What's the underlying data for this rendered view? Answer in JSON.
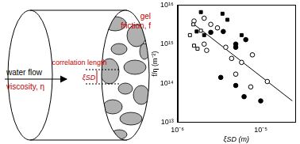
{
  "diagram": {
    "flow_label": "water flow",
    "viscosity_label": "viscosity, η",
    "gel_label": "gel",
    "friction_label": "friction, f",
    "correlation_label": "correlation length",
    "xi_label": "ξSD"
  },
  "chart_data": {
    "type": "scatter",
    "x_label": "ξSD (m)",
    "y_label": "f/η (m⁻²)",
    "log": true,
    "grid": false,
    "xlim": [
      1e-06,
      2.6e-05
    ],
    "xticks": [
      {
        "value": 1e-06,
        "label": "10⁻⁶"
      },
      {
        "value": 1e-05,
        "label": "10⁻⁵"
      }
    ],
    "ylim": [
      10000000000000.0,
      1e+16
    ],
    "yticks": [
      {
        "value": 10000000000000.0,
        "label": "10¹³"
      },
      {
        "value": 100000000000000.0,
        "label": "10¹⁴"
      },
      {
        "value": 1000000000000000.0,
        "label": "10¹⁵"
      },
      {
        "value": 1e+16,
        "label": "10¹⁶"
      }
    ],
    "series": [
      {
        "type": "scatter",
        "marker": "filled_square",
        "color": "#000000",
        "x": [
          1.91e-06,
          3.47e-06,
          3.98e-06,
          1.7e-06,
          2.09e-06,
          5.89e-06
        ],
        "values": [
          6600000000000000.0,
          6000000000000000.0,
          4200000000000000.0,
          2100000000000000.0,
          1700000000000000.0,
          1700000000000000.0
        ]
      },
      {
        "type": "scatter",
        "marker": "open_square",
        "color": "#000000",
        "x": [
          1.55e-06,
          1.91e-06,
          1.41e-06,
          1.58e-06,
          1.74e-06
        ],
        "values": [
          3200000000000000.0,
          2200000000000000.0,
          1700000000000000.0,
          910000000000000.0,
          760000000000000.0
        ]
      },
      {
        "type": "scatter",
        "marker": "filled_circle",
        "color": "#000000",
        "x": [
          2.51e-06,
          3.55e-06,
          5.01e-06,
          6.61e-06,
          5.01e-06,
          3.31e-06,
          5.01e-06,
          6.31e-06,
          1e-05
        ],
        "values": [
          2000000000000000.0,
          2100000000000000.0,
          1000000000000000.0,
          1300000000000000.0,
          830000000000000.0,
          140000000000000.0,
          87000000000000.0,
          45000000000000.0,
          35000000000000.0
        ]
      },
      {
        "type": "scatter",
        "marker": "open_circle",
        "color": "#000000",
        "x": [
          2.09e-06,
          1.58e-06,
          2.51e-06,
          3.02e-06,
          2.09e-06,
          3.8e-06,
          4.47e-06,
          5.89e-06,
          7.94e-06,
          1.2e-05,
          5.01e-06,
          2.24e-06,
          7.59e-06
        ],
        "values": [
          4600000000000000.0,
          3900000000000000.0,
          3200000000000000.0,
          2600000000000000.0,
          1000000000000000.0,
          830000000000000.0,
          430000000000000.0,
          340000000000000.0,
          530000000000000.0,
          110000000000000.0,
          170000000000000.0,
          690000000000000.0,
          80000000000000.0
        ]
      },
      {
        "type": "line",
        "line_style": "solid",
        "color": "#000000",
        "x": [
          1.58e-06,
          2.4e-05
        ],
        "values": [
          3200000000000000.0,
          35000000000000.0
        ]
      }
    ]
  }
}
